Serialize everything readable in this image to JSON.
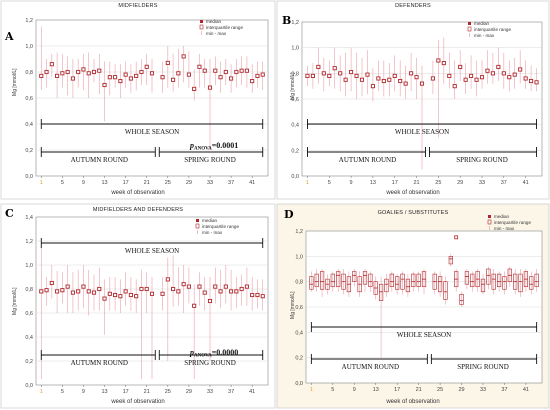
{
  "panels": [
    {
      "letter": "A",
      "title": "MIDFIELDERS",
      "ylabel": "Mg [mmol/L]",
      "xlabel": "week of observation",
      "whole": "WHOLE SEASON",
      "autumn": "AUTUMN ROUND",
      "spring": "SPRING ROUND",
      "pvalue": "p",
      "psub": "ANOVA",
      "pval": "=0.0001"
    },
    {
      "letter": "B",
      "title": "DEFENDERS",
      "ylabel": "Mg [mmol/L]",
      "xlabel": "week of observation",
      "whole": "WHOLE SEASON",
      "autumn": "AUTUMN ROUND",
      "spring": "SPRING ROUND"
    },
    {
      "letter": "C",
      "title": "MIDFIELDERS AND DEFENDERS",
      "ylabel": "Mg [mmol/L]",
      "xlabel": "week of observation",
      "whole": "WHOLE SEASON",
      "autumn": "AUTUMN ROUND",
      "spring": "SPRING ROUND",
      "pvalue": "p",
      "psub": "ANOVA",
      "pval": "=0.0000"
    },
    {
      "letter": "D",
      "title": "GOALIES / SUBSTITUTES",
      "ylabel": "Mg [mmol/L]",
      "xlabel": "week of observation",
      "whole": "WHOLE SEASON",
      "autumn": "AUTUMN ROUND",
      "spring": "SPRING ROUND"
    }
  ],
  "legend": {
    "median": "median",
    "iqr": "interquartile range",
    "minmax": "min - max"
  },
  "colors": {
    "mark": "#b0262c",
    "range": "#e8a0a6",
    "grid": "#d9d9d9",
    "panelD_bg": "#fbf6e8"
  },
  "chart_data": [
    {
      "type": "box",
      "panel": "A",
      "x": [
        1,
        2,
        3,
        4,
        5,
        6,
        7,
        8,
        9,
        10,
        11,
        12,
        13,
        14,
        15,
        16,
        17,
        18,
        19,
        20,
        21,
        22,
        24,
        25,
        26,
        27,
        28,
        29,
        30,
        31,
        32,
        33,
        34,
        35,
        36,
        37,
        38,
        39,
        40,
        41,
        42,
        43
      ],
      "median": [
        0.77,
        0.8,
        0.86,
        0.77,
        0.79,
        0.8,
        0.75,
        0.8,
        0.82,
        0.79,
        0.8,
        0.81,
        0.7,
        0.76,
        0.76,
        0.73,
        0.78,
        0.75,
        0.77,
        0.8,
        0.84,
        0.79,
        0.76,
        0.87,
        0.74,
        0.79,
        0.92,
        0.78,
        0.67,
        0.84,
        0.81,
        0.68,
        0.81,
        0.76,
        0.8,
        0.75,
        0.8,
        0.81,
        0.81,
        0.73,
        0.77,
        0.78
      ],
      "min": [
        0.66,
        0.68,
        0.76,
        0.6,
        0.68,
        0.62,
        0.6,
        0.68,
        0.66,
        0.6,
        0.72,
        0.63,
        0.42,
        0.62,
        0.68,
        0.6,
        0.68,
        0.64,
        0.66,
        0.7,
        0.7,
        0.64,
        0.64,
        0.68,
        0.65,
        0.68,
        0.72,
        0.68,
        0.58,
        0.68,
        0.68,
        0.2,
        0.7,
        0.64,
        0.7,
        0.64,
        0.68,
        0.7,
        0.68,
        0.64,
        0.68,
        0.66
      ],
      "max": [
        1.15,
        0.9,
        0.94,
        0.95,
        0.94,
        0.92,
        0.9,
        0.9,
        0.94,
        0.95,
        0.9,
        0.94,
        0.88,
        0.88,
        0.86,
        0.86,
        0.88,
        0.86,
        0.88,
        0.9,
        0.94,
        0.9,
        0.88,
        1.0,
        0.94,
        0.98,
        1.0,
        0.96,
        0.82,
        0.94,
        0.9,
        0.9,
        0.92,
        0.88,
        0.9,
        0.86,
        0.9,
        0.92,
        0.92,
        0.86,
        0.88,
        0.88
      ],
      "xticks": [
        1,
        5,
        9,
        13,
        17,
        21,
        25,
        29,
        33,
        37,
        41
      ],
      "yticks": [
        0.0,
        0.2,
        0.4,
        0.6,
        0.8,
        1.0,
        1.2
      ],
      "ylim": [
        0,
        1.2
      ],
      "yticklabels": [
        "0,0",
        "0,2",
        "0,4",
        "0,6",
        "0,8",
        "1,0",
        "1,2"
      ]
    },
    {
      "type": "box",
      "panel": "B",
      "x": [
        1,
        2,
        3,
        4,
        5,
        6,
        7,
        8,
        9,
        10,
        11,
        12,
        13,
        14,
        15,
        16,
        17,
        18,
        19,
        20,
        21,
        22,
        24,
        25,
        26,
        27,
        28,
        29,
        30,
        31,
        32,
        33,
        34,
        35,
        36,
        37,
        38,
        39,
        40,
        41,
        42,
        43
      ],
      "median": [
        0.78,
        0.78,
        0.85,
        0.8,
        0.78,
        0.84,
        0.8,
        0.75,
        0.81,
        0.78,
        0.75,
        0.79,
        0.7,
        0.76,
        0.74,
        0.75,
        0.78,
        0.74,
        0.72,
        0.8,
        0.77,
        0.72,
        0.76,
        0.9,
        0.88,
        0.78,
        0.7,
        0.85,
        0.75,
        0.78,
        0.75,
        0.77,
        0.82,
        0.8,
        0.85,
        0.8,
        0.77,
        0.79,
        0.83,
        0.76,
        0.74,
        0.73
      ],
      "min": [
        0.7,
        0.68,
        0.72,
        0.66,
        0.7,
        0.68,
        0.66,
        0.62,
        0.66,
        0.6,
        0.62,
        0.64,
        0.58,
        0.66,
        0.62,
        0.62,
        0.66,
        0.62,
        0.6,
        0.66,
        0.6,
        0.05,
        0.64,
        0.3,
        0.72,
        0.68,
        0.6,
        0.74,
        0.64,
        0.68,
        0.62,
        0.68,
        0.72,
        0.72,
        0.74,
        0.68,
        0.66,
        0.68,
        0.72,
        0.68,
        0.66,
        0.66
      ],
      "max": [
        0.86,
        0.88,
        1.0,
        0.92,
        0.9,
        1.0,
        0.94,
        0.96,
        1.0,
        0.96,
        0.92,
        0.98,
        0.84,
        0.9,
        0.9,
        0.88,
        0.94,
        0.9,
        0.86,
        0.96,
        0.92,
        0.86,
        0.9,
        1.06,
        1.08,
        0.96,
        0.9,
        0.98,
        0.88,
        0.94,
        0.9,
        0.9,
        0.98,
        0.96,
        1.0,
        0.96,
        0.9,
        0.92,
        0.98,
        0.9,
        0.86,
        0.84
      ],
      "xticks": [
        1,
        5,
        9,
        13,
        17,
        21,
        25,
        29,
        33,
        37,
        41
      ],
      "yticks": [
        0.0,
        0.2,
        0.4,
        0.6,
        0.8,
        1.0,
        1.2
      ],
      "ylim": [
        0,
        1.2
      ],
      "yticklabels": [
        "0,0",
        "0,2",
        "0,4",
        "0,6",
        "0,8",
        "1,0",
        "1,2"
      ]
    },
    {
      "type": "box",
      "panel": "C",
      "x": [
        1,
        2,
        3,
        4,
        5,
        6,
        7,
        8,
        9,
        10,
        11,
        12,
        13,
        14,
        15,
        16,
        17,
        18,
        19,
        20,
        21,
        22,
        24,
        25,
        26,
        27,
        28,
        29,
        30,
        31,
        32,
        33,
        34,
        35,
        36,
        37,
        38,
        39,
        40,
        41,
        42,
        43
      ],
      "median": [
        0.78,
        0.79,
        0.85,
        0.78,
        0.79,
        0.82,
        0.77,
        0.78,
        0.82,
        0.78,
        0.77,
        0.8,
        0.72,
        0.76,
        0.75,
        0.74,
        0.78,
        0.75,
        0.74,
        0.8,
        0.8,
        0.76,
        0.76,
        0.88,
        0.8,
        0.78,
        0.84,
        0.82,
        0.66,
        0.82,
        0.77,
        0.7,
        0.82,
        0.78,
        0.82,
        0.78,
        0.78,
        0.8,
        0.82,
        0.75,
        0.75,
        0.74
      ],
      "min": [
        0.05,
        0.66,
        0.72,
        0.6,
        0.68,
        0.6,
        0.6,
        0.62,
        0.64,
        0.58,
        0.62,
        0.62,
        0.42,
        0.62,
        0.62,
        0.6,
        0.66,
        0.62,
        0.6,
        0.05,
        0.6,
        0.05,
        0.62,
        0.2,
        0.65,
        0.66,
        0.6,
        0.68,
        0.05,
        0.66,
        0.62,
        0.2,
        0.68,
        0.64,
        0.68,
        0.62,
        0.64,
        0.66,
        0.66,
        0.62,
        0.64,
        0.62
      ],
      "max": [
        1.15,
        0.9,
        1.0,
        0.95,
        0.94,
        1.0,
        0.94,
        0.96,
        1.0,
        0.96,
        0.92,
        0.98,
        0.88,
        0.9,
        0.9,
        0.88,
        0.94,
        0.9,
        0.88,
        0.96,
        0.94,
        0.9,
        0.9,
        1.06,
        1.08,
        0.98,
        1.0,
        0.98,
        0.84,
        0.94,
        0.9,
        0.9,
        0.98,
        0.96,
        1.0,
        0.96,
        0.9,
        0.92,
        0.98,
        0.9,
        0.88,
        0.88
      ],
      "xticks": [
        1,
        5,
        9,
        13,
        17,
        21,
        25,
        29,
        33,
        37,
        41
      ],
      "yticks": [
        0.0,
        0.2,
        0.4,
        0.6,
        0.8,
        1.0,
        1.2,
        1.4
      ],
      "ylim": [
        0,
        1.4
      ],
      "yticklabels": [
        "0,0",
        "0,2",
        "0,4",
        "0,6",
        "0,8",
        "1,0",
        "1,2",
        "1,4"
      ]
    },
    {
      "type": "box",
      "panel": "D",
      "x": [
        1,
        2,
        3,
        4,
        5,
        6,
        7,
        8,
        9,
        10,
        11,
        12,
        13,
        14,
        15,
        16,
        17,
        18,
        19,
        20,
        21,
        22,
        24,
        25,
        26,
        27,
        28,
        29,
        30,
        31,
        32,
        33,
        34,
        35,
        36,
        37,
        38,
        39,
        40,
        41,
        42,
        43
      ],
      "median": [
        0.78,
        0.8,
        0.8,
        0.78,
        0.8,
        0.85,
        0.8,
        0.78,
        0.85,
        0.78,
        0.85,
        0.8,
        0.75,
        0.72,
        0.78,
        0.8,
        0.78,
        0.82,
        0.76,
        0.8,
        0.8,
        0.82,
        0.8,
        0.8,
        0.72,
        0.98,
        0.82,
        0.65,
        0.84,
        0.8,
        0.82,
        0.78,
        0.85,
        0.82,
        0.8,
        0.8,
        0.85,
        0.8,
        0.8,
        0.82,
        0.78,
        0.8
      ],
      "q1": [
        0.74,
        0.76,
        0.74,
        0.74,
        0.76,
        0.76,
        0.74,
        0.72,
        0.8,
        0.72,
        0.78,
        0.76,
        0.7,
        0.65,
        0.72,
        0.76,
        0.74,
        0.74,
        0.72,
        0.76,
        0.76,
        0.76,
        0.74,
        0.72,
        0.66,
        0.94,
        0.76,
        0.62,
        0.78,
        0.76,
        0.76,
        0.72,
        0.78,
        0.74,
        0.76,
        0.74,
        0.8,
        0.74,
        0.72,
        0.76,
        0.74,
        0.76
      ],
      "q3": [
        0.84,
        0.86,
        0.88,
        0.82,
        0.86,
        0.88,
        0.86,
        0.84,
        0.88,
        0.84,
        0.88,
        0.86,
        0.8,
        0.78,
        0.82,
        0.86,
        0.84,
        0.86,
        0.82,
        0.86,
        0.86,
        0.88,
        0.86,
        0.84,
        0.8,
        1.0,
        0.88,
        0.7,
        0.88,
        0.86,
        0.88,
        0.82,
        0.9,
        0.86,
        0.86,
        0.84,
        0.9,
        0.86,
        0.86,
        0.88,
        0.84,
        0.86
      ],
      "min": [
        0.72,
        0.72,
        0.68,
        0.7,
        0.72,
        0.72,
        0.7,
        0.68,
        0.76,
        0.68,
        0.72,
        0.72,
        0.66,
        0.2,
        0.68,
        0.72,
        0.7,
        0.7,
        0.68,
        0.72,
        0.72,
        0.7,
        0.7,
        0.68,
        0.62,
        0.92,
        0.72,
        0.6,
        0.74,
        0.72,
        0.72,
        0.7,
        0.74,
        0.7,
        0.72,
        0.7,
        0.76,
        0.7,
        0.68,
        0.72,
        0.7,
        0.72
      ],
      "max": [
        0.88,
        0.9,
        0.9,
        0.86,
        0.88,
        0.9,
        0.9,
        0.88,
        0.9,
        0.88,
        0.9,
        0.88,
        0.84,
        0.84,
        0.86,
        0.88,
        0.86,
        0.88,
        0.86,
        0.88,
        0.88,
        0.9,
        0.88,
        0.88,
        0.84,
        1.02,
        0.9,
        0.72,
        0.9,
        0.88,
        0.9,
        0.86,
        0.92,
        0.9,
        0.88,
        0.88,
        0.92,
        0.9,
        0.9,
        0.9,
        0.88,
        0.9
      ],
      "extra_points": [
        {
          "x": 28,
          "y": 1.15
        }
      ],
      "xticks": [
        1,
        5,
        9,
        13,
        17,
        21,
        25,
        29,
        33,
        37,
        41
      ],
      "yticks": [
        0.0,
        0.2,
        0.4,
        0.6,
        0.8,
        1.0,
        1.2
      ],
      "ylim": [
        0,
        1.2
      ],
      "yticklabels": [
        "0,0",
        "0,2",
        "0,4",
        "0,6",
        "0,8",
        "1,0",
        "1,2"
      ]
    }
  ]
}
